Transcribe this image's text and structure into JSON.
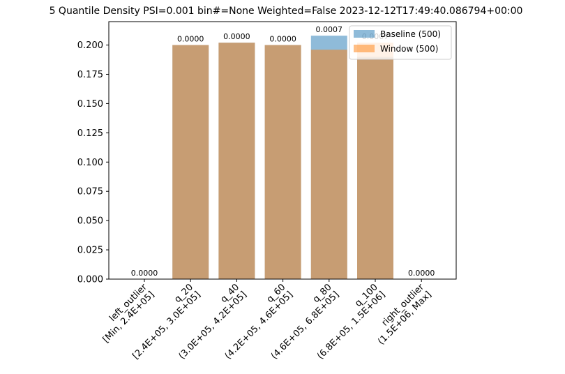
{
  "chart_data": {
    "type": "bar",
    "title": "5 Quantile Density PSI=0.001 bin#=None Weighted=False 2023-12-12T17:49:40.086794+00:00",
    "xlabel": "",
    "ylabel": "",
    "ylim": [
      0,
      0.22
    ],
    "yticks": [
      "0.000",
      "0.025",
      "0.050",
      "0.075",
      "0.100",
      "0.125",
      "0.150",
      "0.175",
      "0.200"
    ],
    "categories": [
      [
        "left_outlier",
        "[Min, 2.4E+05]"
      ],
      [
        "q_20",
        "[2.4E+05, 3.0E+05]"
      ],
      [
        "q_40",
        "(3.0E+05, 4.2E+05]"
      ],
      [
        "q_60",
        "(4.2E+05, 4.6E+05]"
      ],
      [
        "q_80",
        "(4.6E+05, 6.8E+05]"
      ],
      [
        "q_100",
        "(6.8E+05, 1.5E+06]"
      ],
      [
        "right_outlier",
        "(1.5E+06, Max]"
      ]
    ],
    "series": [
      {
        "name": "Baseline (500)",
        "color": "#1f77b4",
        "opacity": 0.5,
        "values": [
          0.0,
          0.2,
          0.202,
          0.2,
          0.208,
          0.19,
          0.0
        ]
      },
      {
        "name": "Window (500)",
        "color": "#ff7f0e",
        "opacity": 0.5,
        "values": [
          0.0,
          0.2,
          0.202,
          0.2,
          0.196,
          0.202,
          0.0
        ]
      }
    ],
    "data_labels": [
      "0.0000",
      "0.0000",
      "0.0000",
      "0.0000",
      "0.0007",
      "0.0007",
      "0.0000"
    ],
    "legend": "top-right",
    "grid": false
  }
}
